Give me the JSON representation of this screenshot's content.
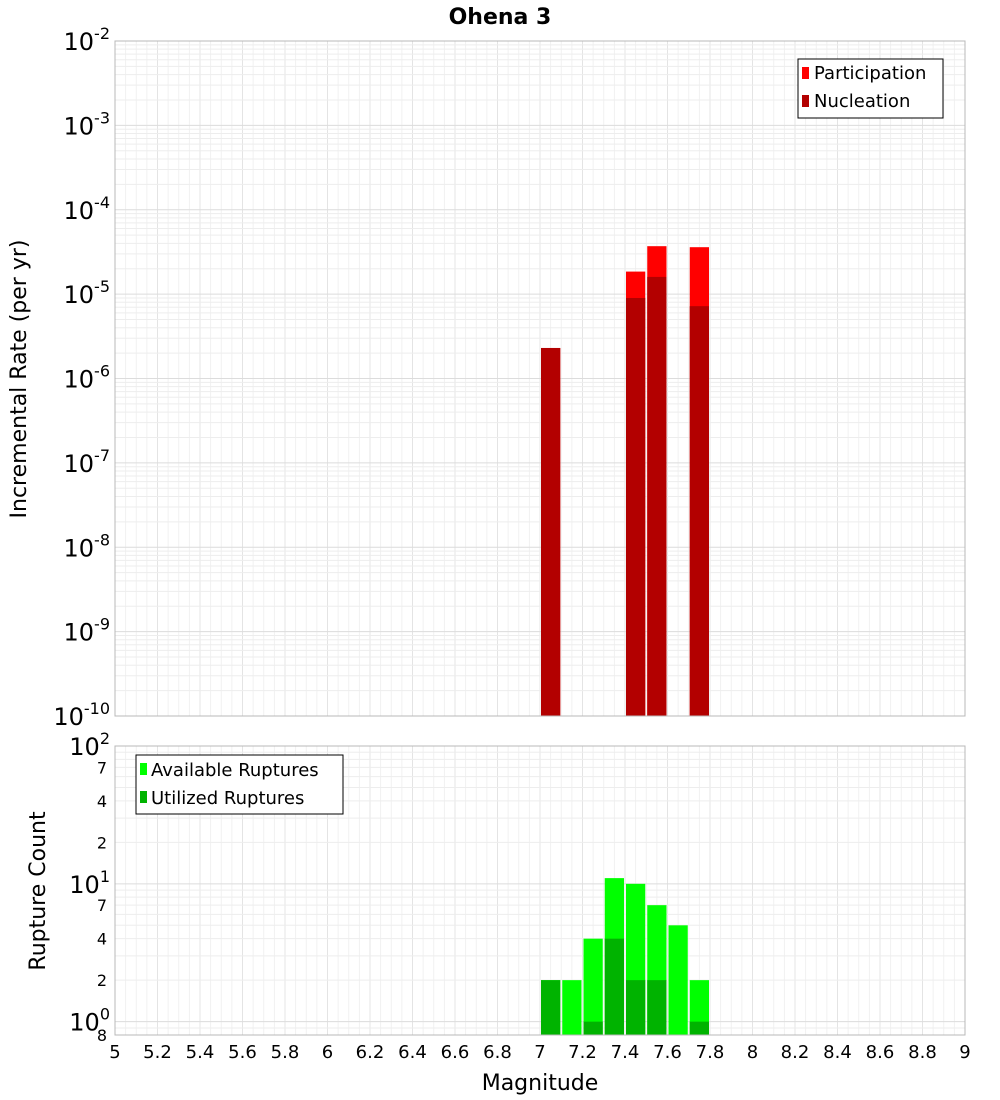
{
  "title": "Ohena 3",
  "chart_data": [
    {
      "type": "bar",
      "title": "Ohena 3",
      "xlabel": "",
      "ylabel": "Incremental Rate (per yr)",
      "yscale": "log",
      "xlim": [
        5,
        9
      ],
      "ylim": [
        1e-10,
        0.01
      ],
      "grid": true,
      "legend_placement": "top-right",
      "y_tick_labels": [
        {
          "base": "10",
          "exp": "-2"
        },
        {
          "base": "10",
          "exp": "-3"
        },
        {
          "base": "10",
          "exp": "-4"
        },
        {
          "base": "10",
          "exp": "-5"
        },
        {
          "base": "10",
          "exp": "-6"
        },
        {
          "base": "10",
          "exp": "-7"
        },
        {
          "base": "10",
          "exp": "-8"
        },
        {
          "base": "10",
          "exp": "-9"
        },
        {
          "base": "10",
          "exp": "-10"
        }
      ],
      "series": [
        {
          "name": "Participation",
          "color": "#ff0000",
          "points": [
            {
              "x": 7.05,
              "y": 2.3e-06
            },
            {
              "x": 7.45,
              "y": 1.85e-05
            },
            {
              "x": 7.55,
              "y": 3.7e-05
            },
            {
              "x": 7.75,
              "y": 3.6e-05
            }
          ]
        },
        {
          "name": "Nucleation",
          "color": "#b30000",
          "points": [
            {
              "x": 7.05,
              "y": 2.3e-06
            },
            {
              "x": 7.45,
              "y": 9e-06
            },
            {
              "x": 7.55,
              "y": 1.6e-05
            },
            {
              "x": 7.75,
              "y": 7.2e-06
            }
          ]
        }
      ]
    },
    {
      "type": "bar",
      "title": "",
      "xlabel": "Magnitude",
      "ylabel": "Rupture Count",
      "yscale": "log",
      "xlim": [
        5,
        9
      ],
      "ylim": [
        0.8,
        100
      ],
      "grid": true,
      "legend_placement": "top-left",
      "x_tick_labels": [
        "5",
        "5.2",
        "5.4",
        "5.6",
        "5.8",
        "6",
        "6.2",
        "6.4",
        "6.6",
        "6.8",
        "7",
        "7.2",
        "7.4",
        "7.6",
        "7.8",
        "8",
        "8.2",
        "8.4",
        "8.6",
        "8.8",
        "9"
      ],
      "y_major_tick_labels": [
        {
          "base": "10",
          "exp": "2"
        },
        {
          "base": "10",
          "exp": "1"
        },
        {
          "base": "10",
          "exp": "0"
        }
      ],
      "y_minor_tick_labels": [
        {
          "label": "7",
          "value": 70
        },
        {
          "label": "4",
          "value": 40
        },
        {
          "label": "2",
          "value": 20
        },
        {
          "label": "7",
          "value": 7
        },
        {
          "label": "4",
          "value": 4
        },
        {
          "label": "2",
          "value": 2
        },
        {
          "label": "8",
          "value": 0.8
        }
      ],
      "series": [
        {
          "name": "Available Ruptures",
          "color": "#00ff00",
          "points": [
            {
              "x": 7.05,
              "y": 2
            },
            {
              "x": 7.15,
              "y": 2
            },
            {
              "x": 7.25,
              "y": 4
            },
            {
              "x": 7.35,
              "y": 11
            },
            {
              "x": 7.45,
              "y": 10
            },
            {
              "x": 7.55,
              "y": 7
            },
            {
              "x": 7.65,
              "y": 5
            },
            {
              "x": 7.75,
              "y": 2
            }
          ]
        },
        {
          "name": "Utilized Ruptures",
          "color": "#00b300",
          "points": [
            {
              "x": 7.05,
              "y": 2
            },
            {
              "x": 7.25,
              "y": 1
            },
            {
              "x": 7.35,
              "y": 4
            },
            {
              "x": 7.45,
              "y": 2
            },
            {
              "x": 7.55,
              "y": 2
            },
            {
              "x": 7.75,
              "y": 1
            }
          ]
        }
      ]
    }
  ]
}
